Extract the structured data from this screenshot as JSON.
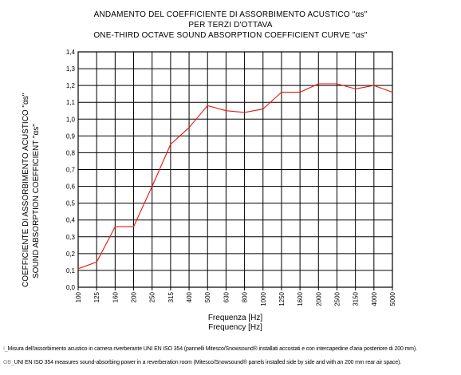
{
  "chart_data": {
    "type": "line",
    "title_lines": [
      "ANDAMENTO DEL COEFFICIENTE DI ASSORBIMENTO ACUSTICO \"αs\"",
      "PER TERZI D'OTTAVA",
      "ONE-THIRD OCTAVE SOUND ABSORPTION COEFFICIENT CURVE \"αs\""
    ],
    "ylabel_lines": [
      "COEFFICIENTE DI ASSORBIMENTO ACUSTICO \"αs\"",
      "SOUND ABSORPTION COEFFICIENT \"αs\""
    ],
    "xlabel_lines": [
      "Frequenza [Hz]",
      "Frequency [Hz]"
    ],
    "categories": [
      "100",
      "125",
      "160",
      "200",
      "250",
      "315",
      "400",
      "500",
      "630",
      "800",
      "1000",
      "1250",
      "1600",
      "2000",
      "2500",
      "3150",
      "4000",
      "5000"
    ],
    "y_ticks": [
      "0,0",
      "0,1",
      "0,2",
      "0,3",
      "0,4",
      "0,5",
      "0,6",
      "0,7",
      "0,8",
      "0,9",
      "1,0",
      "1,1",
      "1,2",
      "1,3",
      "1,4"
    ],
    "ylim": [
      0,
      1.4
    ],
    "grid": true,
    "series": [
      {
        "color": "#e8140c",
        "values": [
          0.11,
          0.15,
          0.36,
          0.36,
          0.6,
          0.85,
          0.95,
          1.08,
          1.05,
          1.04,
          1.06,
          1.16,
          1.16,
          1.21,
          1.21,
          1.18,
          1.2,
          1.16
        ]
      }
    ]
  },
  "footnotes": [
    {
      "prefix": "I_",
      "text": "Misura dell'assorbimento acustico in camera riverberante UNI EN ISO 354 (pannelli Mitesco/Snowsound® installati accostati e con intercapedine d'aria posteriore di 200 mm)."
    },
    {
      "prefix": "GB_",
      "text": "UNI EN ISO 354 measures sound-absorbing power in a reverberation room (Mitesco/Snowsound® panels installed side by side and with an 200 mm rear air space)."
    }
  ]
}
